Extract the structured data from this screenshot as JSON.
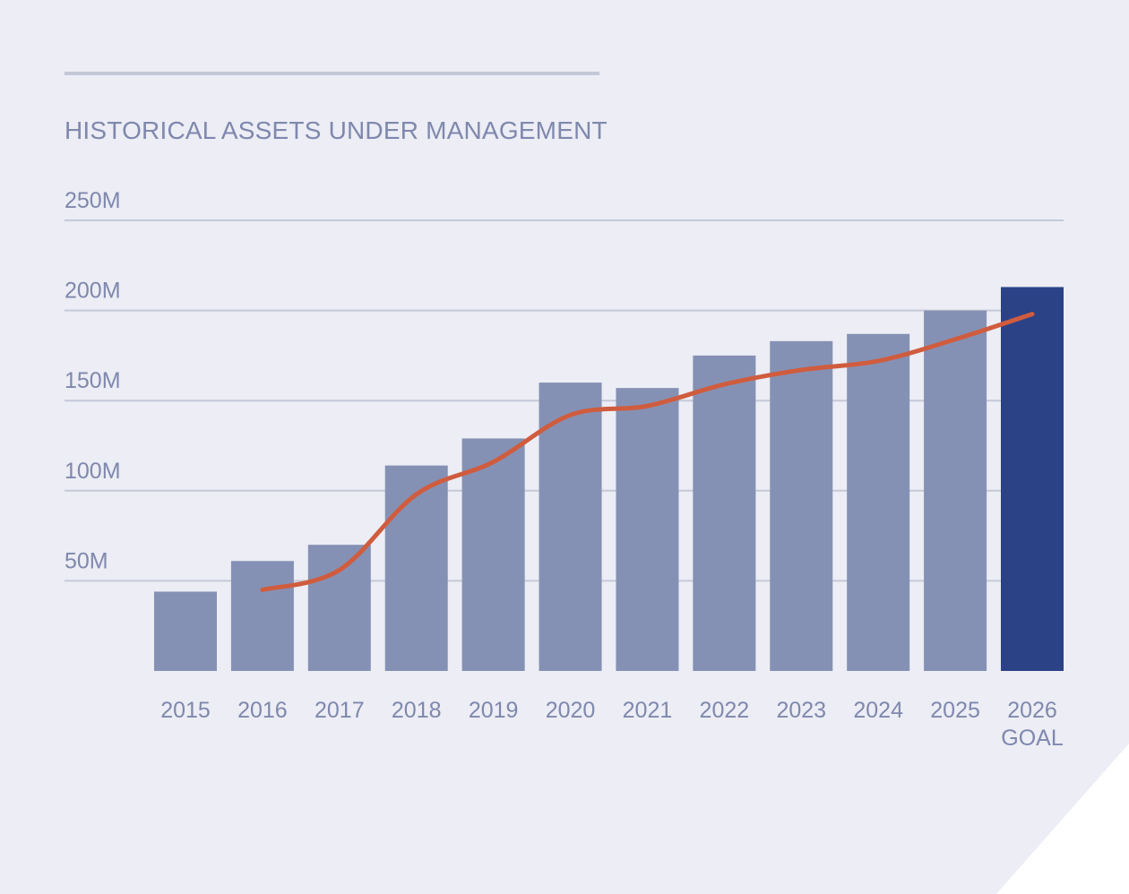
{
  "chart_data": {
    "type": "bar",
    "title": "HISTORICAL ASSETS UNDER MANAGEMENT",
    "xlabel": "",
    "ylabel": "",
    "ylim": [
      0,
      250
    ],
    "ytick_values": [
      50,
      100,
      150,
      200,
      250
    ],
    "ytick_labels": [
      "50M",
      "100M",
      "150M",
      "200M",
      "250M"
    ],
    "grid": true,
    "categories": [
      "2015",
      "2016",
      "2017",
      "2018",
      "2019",
      "2020",
      "2021",
      "2022",
      "2023",
      "2024",
      "2025",
      "2026\nGOAL"
    ],
    "category_labels": [
      [
        "2015"
      ],
      [
        "2016"
      ],
      [
        "2017"
      ],
      [
        "2018"
      ],
      [
        "2019"
      ],
      [
        "2020"
      ],
      [
        "2021"
      ],
      [
        "2022"
      ],
      [
        "2023"
      ],
      [
        "2024"
      ],
      [
        "2025"
      ],
      [
        "2026",
        "GOAL"
      ]
    ],
    "series": [
      {
        "type": "bar",
        "values": [
          44,
          61,
          70,
          114,
          129,
          160,
          157,
          175,
          183,
          187,
          200,
          213
        ],
        "color": "#8591b4",
        "highlight_index": 11,
        "highlight_color": "#2b4286"
      },
      {
        "type": "line",
        "values": [
          null,
          45,
          56,
          98,
          116,
          142,
          147,
          159,
          167,
          172,
          184,
          198
        ],
        "color": "#d05c3e"
      }
    ]
  }
}
